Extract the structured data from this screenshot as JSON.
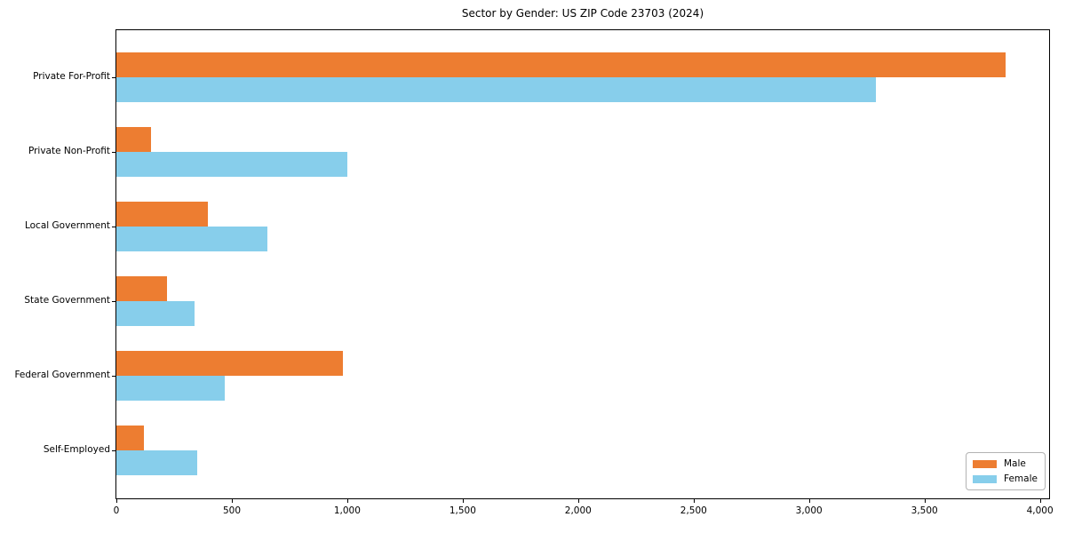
{
  "title": "Sector by Gender: US ZIP Code 23703 (2024)",
  "chart_data": {
    "type": "bar",
    "orientation": "horizontal",
    "title": "Sector by Gender: US ZIP Code 23703 (2024)",
    "categories": [
      "Private For-Profit",
      "Private Non-Profit",
      "Local Government",
      "State Government",
      "Federal Government",
      "Self-Employed"
    ],
    "series": [
      {
        "name": "Male",
        "color": "#ED7D31",
        "values": [
          3850,
          150,
          395,
          220,
          980,
          120
        ]
      },
      {
        "name": "Female",
        "color": "#87CEEB",
        "values": [
          3290,
          1000,
          655,
          340,
          470,
          350
        ]
      }
    ],
    "xlabel": "",
    "ylabel": "",
    "xlim": [
      0,
      4040
    ],
    "xticks": [
      0,
      500,
      1000,
      1500,
      2000,
      2500,
      3000,
      3500,
      4000
    ],
    "xtick_labels": [
      "0",
      "500",
      "1,000",
      "1,500",
      "2,000",
      "2,500",
      "3,000",
      "3,500",
      "4,000"
    ],
    "grid": false,
    "legend_position": "lower right"
  }
}
